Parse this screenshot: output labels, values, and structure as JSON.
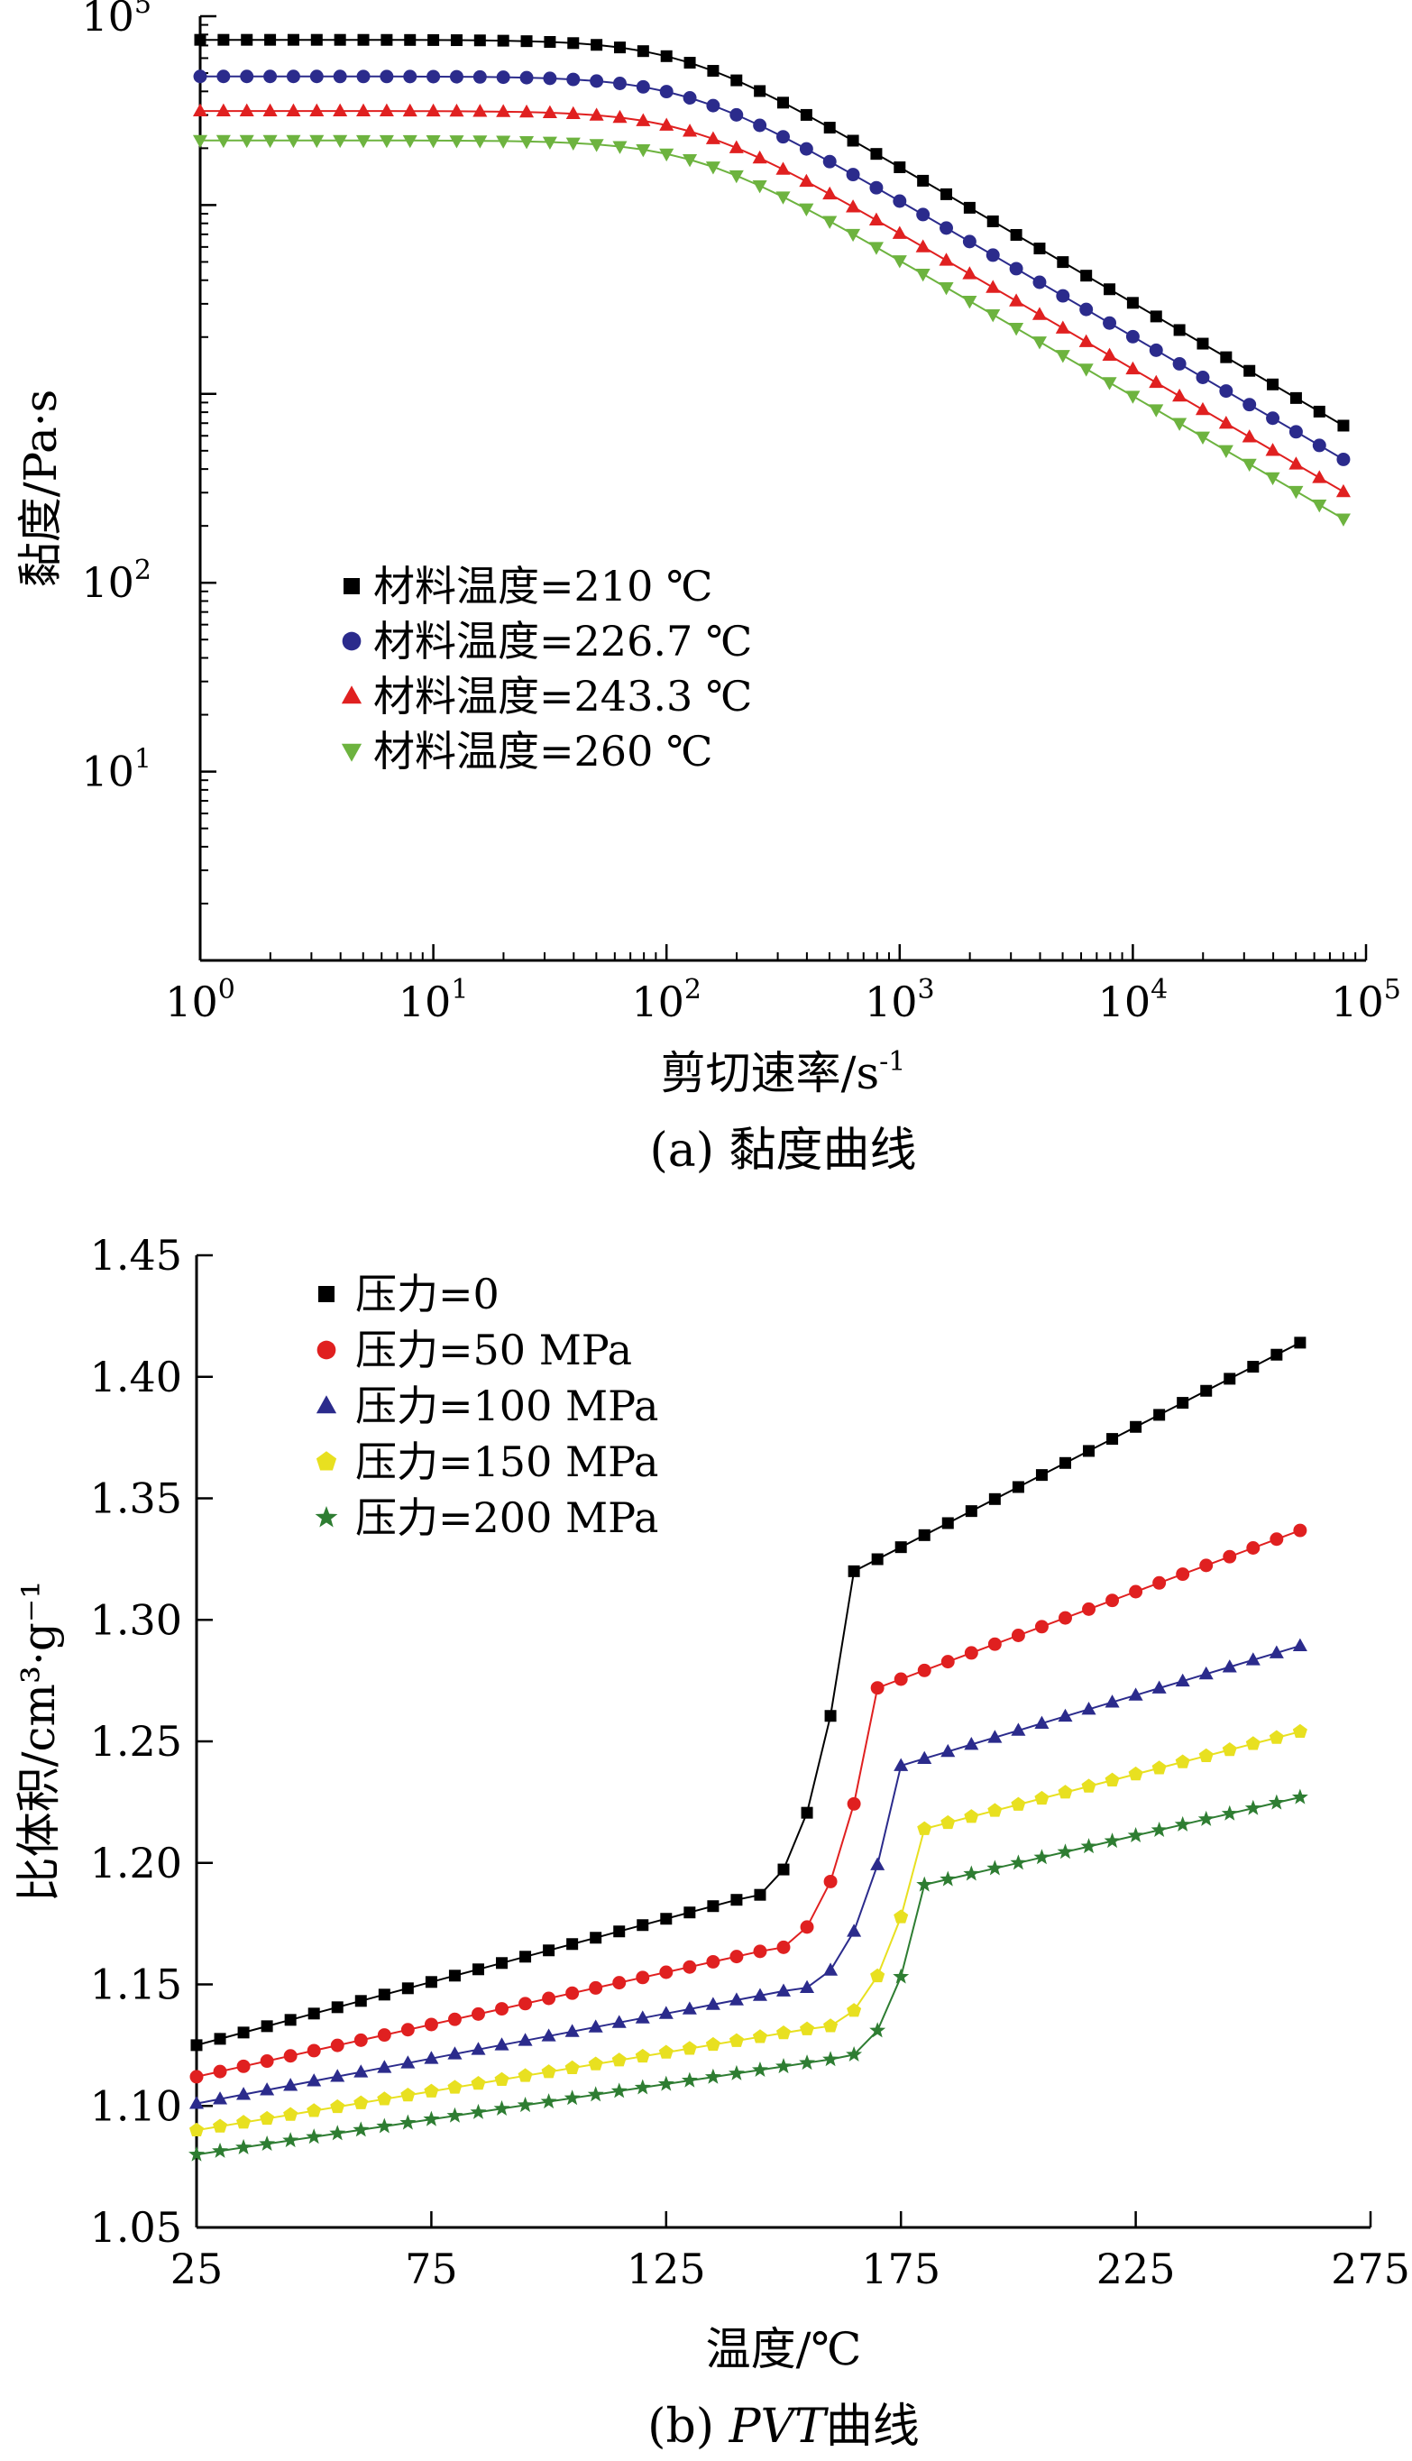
{
  "chart_data": [
    {
      "type": "line",
      "caption": "(a) 黏度曲线",
      "xlabel": "剪切速率/s",
      "xlabel_sup": "-1",
      "ylabel": "黏度/Pa·s",
      "x_scale": "log",
      "y_scale": "log",
      "xlim": [
        1,
        100000
      ],
      "ylim": [
        1,
        100000
      ],
      "x_ticks": [
        {
          "value": 1,
          "base": "10",
          "exp": "0"
        },
        {
          "value": 10,
          "base": "10",
          "exp": "1"
        },
        {
          "value": 100,
          "base": "10",
          "exp": "2"
        },
        {
          "value": 1000,
          "base": "10",
          "exp": "3"
        },
        {
          "value": 10000,
          "base": "10",
          "exp": "4"
        },
        {
          "value": 100000,
          "base": "10",
          "exp": "5"
        }
      ],
      "y_ticks": [
        {
          "value": 10,
          "base": "10",
          "exp": "1"
        },
        {
          "value": 100,
          "base": "10",
          "exp": "2"
        },
        {
          "value": 100000,
          "base": "10",
          "exp": "5"
        }
      ],
      "legend_position": "center-left",
      "series": [
        {
          "name": "材料温度=210 ℃",
          "color": "#000000",
          "marker": "square",
          "eta0": 75000,
          "lambda": 0.0086,
          "n": 0.28
        },
        {
          "name": "材料温度=226.7 ℃",
          "color": "#2b2b8c",
          "marker": "circle",
          "eta0": 48000,
          "lambda": 0.0082,
          "n": 0.28
        },
        {
          "name": "材料温度=243.3 ℃",
          "color": "#e02020",
          "marker": "triangle-up",
          "eta0": 31500,
          "lambda": 0.0079,
          "n": 0.28
        },
        {
          "name": "材料温度=260 ℃",
          "color": "#6db33f",
          "marker": "triangle-down",
          "eta0": 22000,
          "lambda": 0.0076,
          "n": 0.28
        }
      ]
    },
    {
      "type": "line",
      "caption": "(b) PVT曲线",
      "caption_prefix": "(b) ",
      "caption_italic": "PVT",
      "caption_suffix": "曲线",
      "xlabel": "温度/℃",
      "ylabel": "比体积/cm³·g⁻¹",
      "xlim": [
        25,
        275
      ],
      "ylim": [
        1.05,
        1.45
      ],
      "x_ticks": [
        "25",
        "75",
        "125",
        "175",
        "225",
        "275"
      ],
      "y_ticks": [
        "1.05",
        "1.10",
        "1.15",
        "1.20",
        "1.25",
        "1.30",
        "1.35",
        "1.40",
        "1.45"
      ],
      "legend_position": "top-left",
      "x_start": 25,
      "x_end": 260,
      "x_step": 5,
      "series": [
        {
          "name": "压力=0",
          "color": "#000000",
          "marker": "square",
          "v0": 1.125,
          "slope_solid": 0.00052,
          "transition_start": 140,
          "transition_end": 165,
          "melt_value": 1.32,
          "slope_melt": 0.00099
        },
        {
          "name": "压力=50 MPa",
          "color": "#e02020",
          "marker": "circle",
          "v0": 1.112,
          "slope_solid": 0.00043,
          "transition_start": 145,
          "transition_end": 170,
          "melt_value": 1.272,
          "slope_melt": 0.00072
        },
        {
          "name": "压力=100 MPa",
          "color": "#2b2b8c",
          "marker": "triangle-up",
          "v0": 1.101,
          "slope_solid": 0.00037,
          "transition_start": 150,
          "transition_end": 175,
          "melt_value": 1.24,
          "slope_melt": 0.00058
        },
        {
          "name": "压力=150 MPa",
          "color": "#e8e020",
          "marker": "pentagon",
          "v0": 1.09,
          "slope_solid": 0.00032,
          "transition_start": 155,
          "transition_end": 180,
          "melt_value": 1.214,
          "slope_melt": 0.0005
        },
        {
          "name": "压力=200 MPa",
          "color": "#2e7d32",
          "marker": "star",
          "v0": 1.08,
          "slope_solid": 0.00029,
          "transition_start": 160,
          "transition_end": 180,
          "melt_value": 1.191,
          "slope_melt": 0.00045
        }
      ]
    }
  ]
}
